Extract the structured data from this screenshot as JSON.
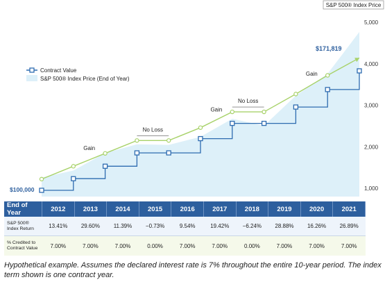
{
  "chart_data": {
    "type": "line",
    "y_axis_title": "S&P 500® Index Price",
    "y_ticks": [
      1000,
      2000,
      3000,
      4000,
      5000
    ],
    "y_tick_labels": [
      "1,000",
      "2,000",
      "3,000",
      "4,000",
      "5,000"
    ],
    "ylim": [
      800,
      5300
    ],
    "x_periods": [
      "2012",
      "2013",
      "2014",
      "2015",
      "2016",
      "2017",
      "2018",
      "2019",
      "2020",
      "2021"
    ],
    "legend": {
      "placement": "upper-left",
      "contract_label": "Contract Value",
      "index_label": "S&P 500® Index Price (End of Year)"
    },
    "start_value_label": "$100,000",
    "end_value_label": "$171,819",
    "contract_value": [
      100000,
      107000,
      114490,
      122504,
      122504,
      131080,
      140255,
      140255,
      150073,
      160578,
      171819
    ],
    "index_price_area": [
      1257,
      1426,
      1848,
      2059,
      2044,
      2239,
      2674,
      2507,
      3231,
      3756,
      4766
    ],
    "crediting_line": [
      {
        "x": 0.0,
        "y": 1220
      },
      {
        "x": 1.0,
        "y": 1530
      },
      {
        "x": 2.0,
        "y": 1840
      },
      {
        "x": 3.0,
        "y": 2150
      },
      {
        "x": 4.0,
        "y": 2150
      },
      {
        "x": 5.0,
        "y": 2460
      },
      {
        "x": 6.0,
        "y": 2840
      },
      {
        "x": 7.0,
        "y": 2840
      },
      {
        "x": 8.0,
        "y": 3270
      },
      {
        "x": 9.0,
        "y": 3720
      },
      {
        "x": 10.0,
        "y": 4140
      }
    ],
    "annotations": [
      "Gain",
      "No Loss",
      "Gain",
      "No Loss",
      "Gain"
    ]
  },
  "table": {
    "header_label": "End of Year",
    "years": [
      "2012",
      "2013",
      "2014",
      "2015",
      "2016",
      "2017",
      "2018",
      "2019",
      "2020",
      "2021"
    ],
    "index_return_label_1": "S&P 500®",
    "index_return_label_2": "Index Return",
    "index_return": [
      "13.41%",
      "29.60%",
      "11.39%",
      "−0.73%",
      "9.54%",
      "19.42%",
      "−6.24%",
      "28.88%",
      "16.26%",
      "26.89%"
    ],
    "credited_label_1": "% Credited to",
    "credited_label_2": "Contract Value",
    "credited": [
      "7.00%",
      "7.00%",
      "7.00%",
      "0.00%",
      "7.00%",
      "7.00%",
      "0.00%",
      "7.00%",
      "7.00%",
      "7.00%"
    ]
  },
  "footnote": "Hypothetical example. Assumes the declared interest rate is 7% throughout the entire 10-year period. The index term shown is one contract year.",
  "colors": {
    "contract": "#2d6bb0",
    "area_fill": "#ddf0f9",
    "crediting": "#a8d26a",
    "header": "#2d5f9e",
    "axis_text": "#333333"
  }
}
